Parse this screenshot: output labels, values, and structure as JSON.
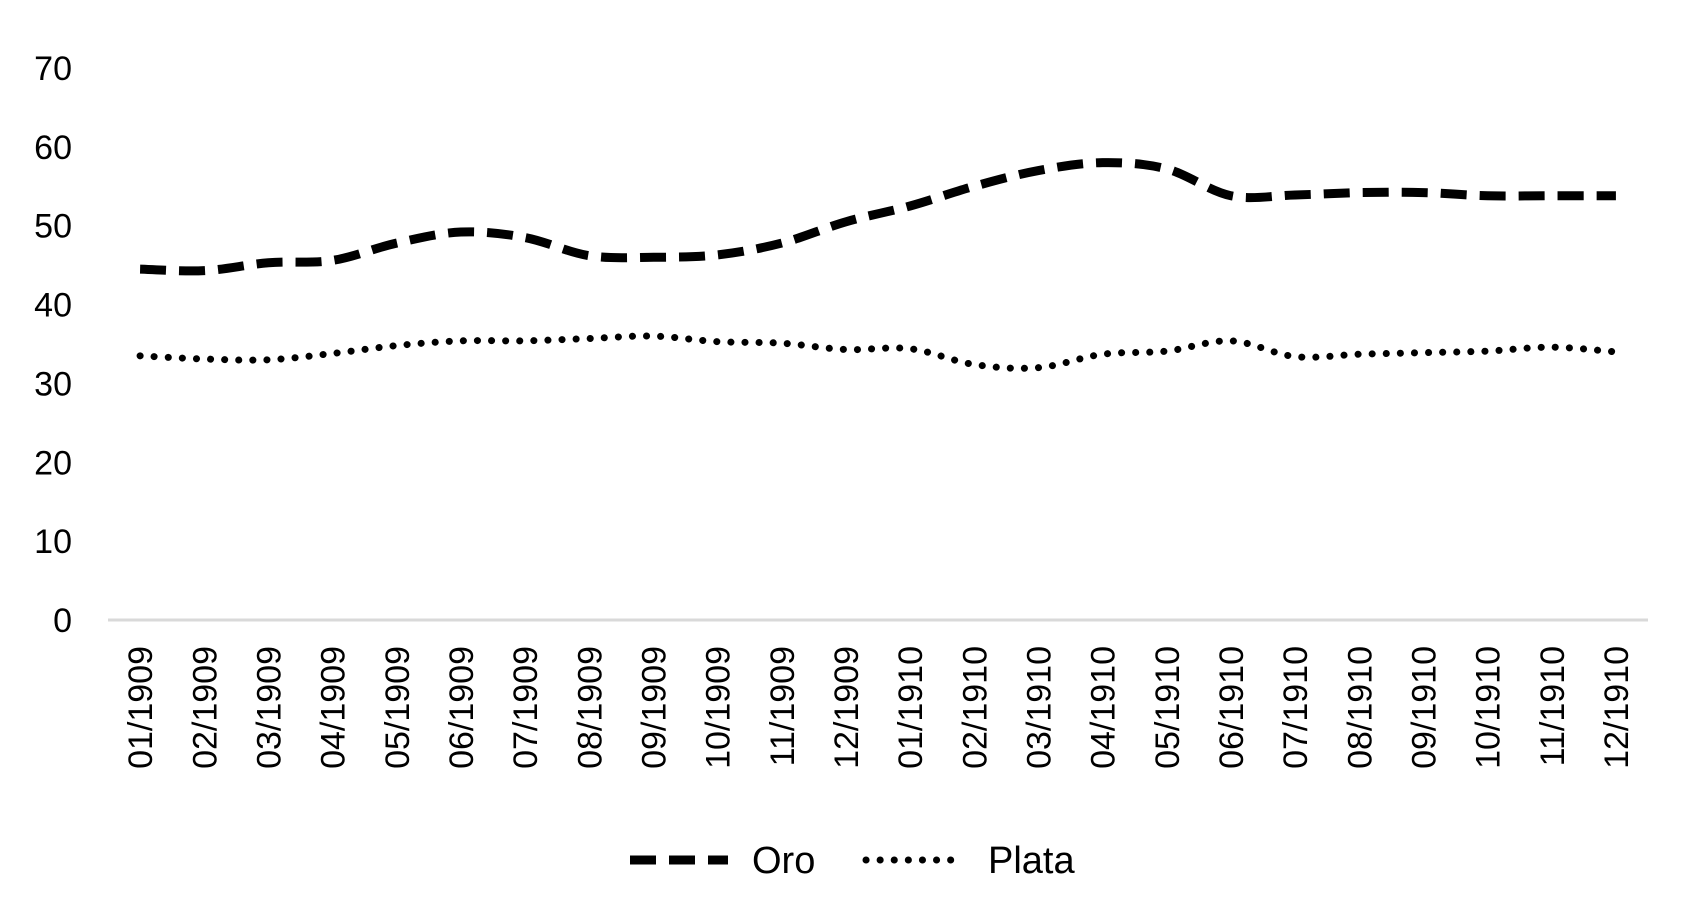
{
  "colors": {
    "background": "#ffffff",
    "series_line": "#000000",
    "axis_line": "#d9d9d9"
  },
  "legend": {
    "position": "bottom",
    "items": [
      {
        "label": "Oro",
        "line_style": "dashed"
      },
      {
        "label": "Plata",
        "line_style": "dotted"
      }
    ]
  },
  "chart_data": {
    "type": "line",
    "title": "",
    "xlabel": "",
    "ylabel": "",
    "ylim": [
      0,
      70
    ],
    "yticks": [
      "0",
      "10",
      "20",
      "30",
      "40",
      "50",
      "60",
      "70"
    ],
    "grid": false,
    "legend_position": "bottom",
    "categories": [
      "01/1909",
      "02/1909",
      "03/1909",
      "04/1909",
      "05/1909",
      "06/1909",
      "07/1909",
      "08/1909",
      "09/1909",
      "10/1909",
      "11/1909",
      "12/1909",
      "01/1910",
      "02/1910",
      "03/1910",
      "04/1910",
      "05/1910",
      "06/1910",
      "07/1910",
      "08/1910",
      "09/1910",
      "10/1910",
      "11/1910",
      "12/1910"
    ],
    "series": [
      {
        "name": "Oro",
        "line_style": "dashed",
        "values": [
          44.5,
          44.3,
          45.3,
          45.6,
          47.8,
          49.2,
          48.5,
          46.2,
          46.0,
          46.3,
          47.8,
          50.5,
          52.5,
          55.0,
          57.0,
          58.0,
          57.2,
          53.8,
          53.9,
          54.2,
          54.2,
          53.8,
          53.8,
          53.8
        ]
      },
      {
        "name": "Plata",
        "line_style": "dotted",
        "values": [
          33.5,
          33.1,
          33.0,
          33.8,
          34.8,
          35.4,
          35.4,
          35.7,
          36.0,
          35.3,
          35.1,
          34.3,
          34.4,
          32.4,
          32.0,
          33.7,
          34.1,
          35.4,
          33.4,
          33.7,
          33.9,
          34.1,
          34.6,
          34.0
        ]
      }
    ]
  }
}
